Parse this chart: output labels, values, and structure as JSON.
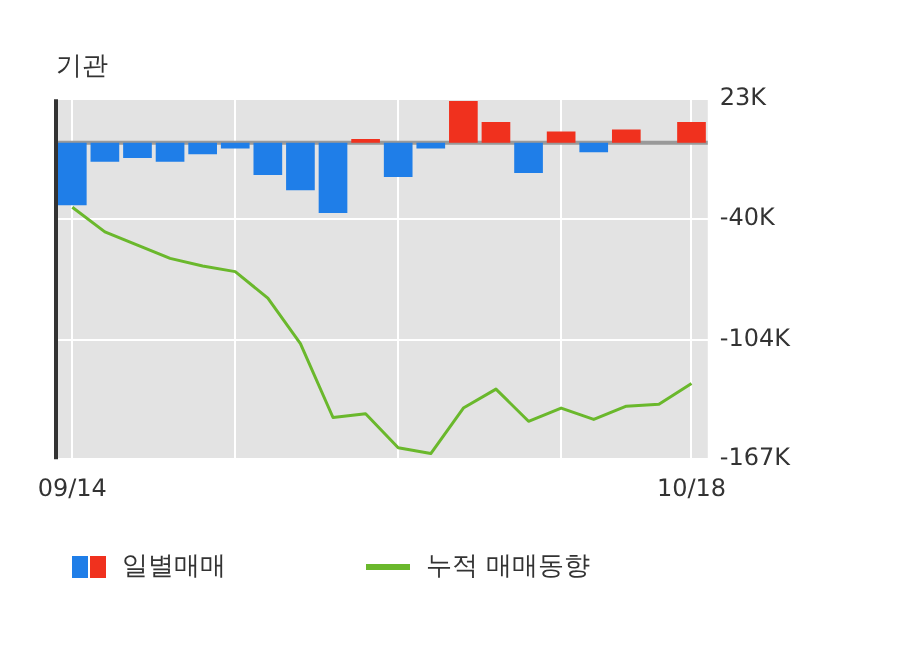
{
  "chart_data": {
    "type": "bar",
    "title": "기관",
    "categories": [
      "09/14",
      null,
      null,
      null,
      null,
      null,
      null,
      null,
      null,
      null,
      null,
      null,
      null,
      null,
      null,
      null,
      null,
      null,
      null,
      "10/18"
    ],
    "series": [
      {
        "name": "일별매매",
        "colors": [
          "#1f7ee8",
          "#1f7ee8",
          "#1f7ee8",
          "#1f7ee8",
          "#1f7ee8",
          "#1f7ee8",
          "#1f7ee8",
          "#1f7ee8",
          "#1f7ee8",
          "#f0311e",
          "#1f7ee8",
          "#1f7ee8",
          "#f0311e",
          "#f0311e",
          "#1f7ee8",
          "#f0311e",
          "#1f7ee8",
          "#f0311e",
          "#f0311e",
          "#f0311e"
        ],
        "values": [
          -33,
          -10,
          -8,
          -10,
          -6,
          -3,
          -17,
          -25,
          -37,
          2,
          -18,
          -3,
          22,
          11,
          -16,
          6,
          -5,
          7,
          0,
          11
        ]
      },
      {
        "name": "누적 매매동향",
        "type": "line",
        "color": "#6ab82c",
        "values": [
          -34,
          -47,
          -54,
          -61,
          -65,
          -68,
          -82,
          -106,
          -145,
          -143,
          -161,
          -164,
          -140,
          -130,
          -147,
          -140,
          -146,
          -139,
          -138,
          -127
        ]
      }
    ],
    "ylim": [
      -167,
      23
    ],
    "yticks": [
      {
        "value": 23,
        "label": "23K"
      },
      {
        "value": -40,
        "label": "-40K"
      },
      {
        "value": -104,
        "label": "-104K"
      },
      {
        "value": -167,
        "label": "-167K"
      }
    ],
    "ref_lines": [
      {
        "axis": "y",
        "value": 0,
        "color": "#999999"
      }
    ],
    "grid": true,
    "legend": "bottom",
    "marker": "none",
    "line_style": "solid"
  }
}
